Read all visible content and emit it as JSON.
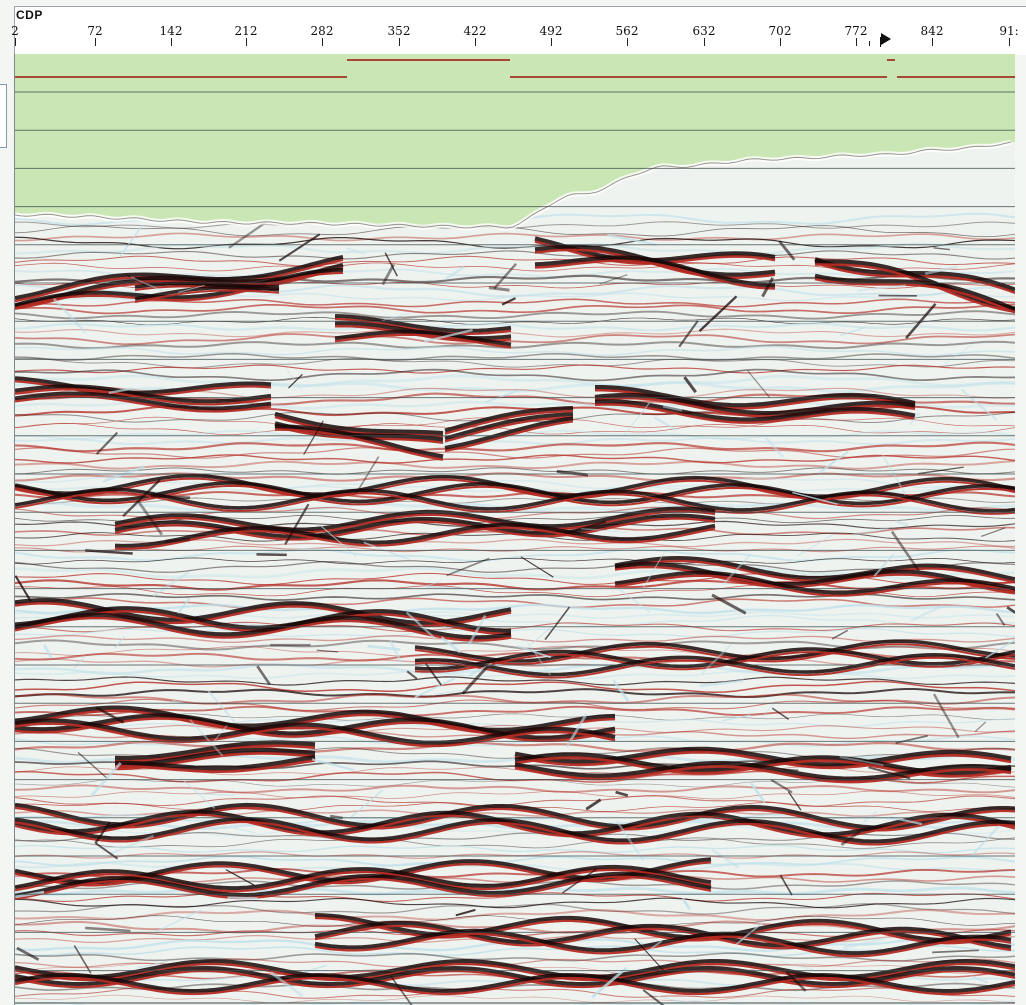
{
  "axis": {
    "label": "CDP",
    "ticks": [
      "2",
      "72",
      "142",
      "212",
      "282",
      "352",
      "422",
      "492",
      "562",
      "632",
      "702",
      "772",
      "842",
      "91:"
    ]
  },
  "colors": {
    "water": "#c9e6b4",
    "background": "#eef3ef",
    "wavelet_peak": "#b32a22",
    "wavelet_dark": "#180808",
    "wavelet_trough": "#bfe0ea",
    "horizon_line": "#3c4a4c",
    "marker_line": "#a54836"
  },
  "icons": {
    "playhead": "right-triangle-pointer"
  }
}
